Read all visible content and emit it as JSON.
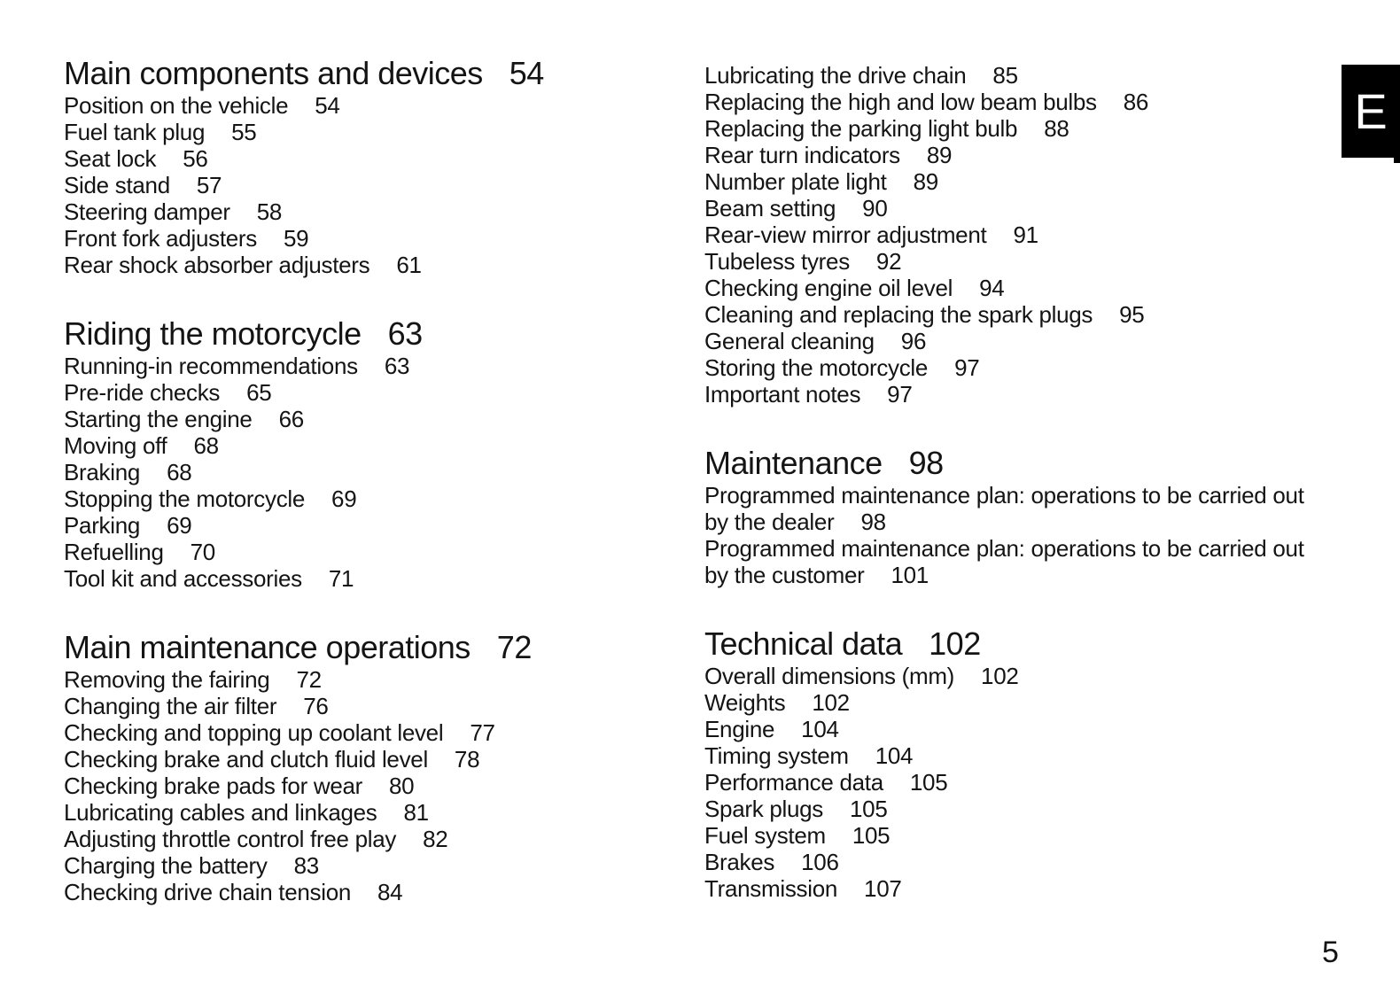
{
  "page": {
    "number": "5"
  },
  "section_tab": {
    "letter": "E"
  },
  "toc": {
    "left_column": [
      {
        "heading": {
          "label": "Main components and devices",
          "page": "54"
        },
        "items": [
          {
            "label": "Position on the vehicle",
            "page": "54"
          },
          {
            "label": "Fuel tank plug",
            "page": "55"
          },
          {
            "label": "Seat lock",
            "page": "56"
          },
          {
            "label": "Side stand",
            "page": "57"
          },
          {
            "label": "Steering damper",
            "page": "58"
          },
          {
            "label": "Front fork adjusters",
            "page": "59"
          },
          {
            "label": "Rear shock absorber adjusters",
            "page": "61"
          }
        ]
      },
      {
        "heading": {
          "label": "Riding the motorcycle",
          "page": "63"
        },
        "items": [
          {
            "label": "Running-in recommendations",
            "page": "63"
          },
          {
            "label": "Pre-ride checks",
            "page": "65"
          },
          {
            "label": "Starting the engine",
            "page": "66"
          },
          {
            "label": "Moving off",
            "page": "68"
          },
          {
            "label": "Braking",
            "page": "68"
          },
          {
            "label": "Stopping the motorcycle",
            "page": "69"
          },
          {
            "label": "Parking",
            "page": "69"
          },
          {
            "label": "Refuelling",
            "page": "70"
          },
          {
            "label": "Tool kit and accessories",
            "page": "71"
          }
        ]
      },
      {
        "heading": {
          "label": "Main maintenance operations",
          "page": "72"
        },
        "items": [
          {
            "label": "Removing the fairing",
            "page": "72"
          },
          {
            "label": "Changing the air filter",
            "page": "76"
          },
          {
            "label": "Checking and topping up coolant level",
            "page": "77"
          },
          {
            "label": "Checking brake and clutch fluid level",
            "page": "78"
          },
          {
            "label": "Checking brake pads for wear",
            "page": "80"
          },
          {
            "label": "Lubricating cables and linkages",
            "page": "81"
          },
          {
            "label": "Adjusting throttle control free play",
            "page": "82"
          },
          {
            "label": "Charging the battery",
            "page": "83"
          },
          {
            "label": "Checking drive chain tension",
            "page": "84"
          }
        ]
      }
    ],
    "right_column": [
      {
        "heading": null,
        "items": [
          {
            "label": "Lubricating the drive chain",
            "page": "85"
          },
          {
            "label": "Replacing the high and low beam bulbs",
            "page": "86"
          },
          {
            "label": "Replacing the parking light bulb",
            "page": "88"
          },
          {
            "label": "Rear turn indicators",
            "page": "89"
          },
          {
            "label": "Number plate light",
            "page": "89"
          },
          {
            "label": "Beam setting",
            "page": "90"
          },
          {
            "label": "Rear-view mirror adjustment",
            "page": "91"
          },
          {
            "label": "Tubeless tyres",
            "page": "92"
          },
          {
            "label": "Checking engine oil level",
            "page": "94"
          },
          {
            "label": "Cleaning and replacing the spark plugs",
            "page": "95"
          },
          {
            "label": "General cleaning",
            "page": "96"
          },
          {
            "label": "Storing the motorcycle",
            "page": "97"
          },
          {
            "label": "Important notes",
            "page": "97"
          }
        ]
      },
      {
        "heading": {
          "label": "Maintenance",
          "page": "98"
        },
        "items": [
          {
            "label": "Programmed maintenance plan: operations to be carried out",
            "page": ""
          },
          {
            "label": "by the dealer",
            "page": "98"
          },
          {
            "label": "Programmed maintenance plan: operations to be carried out",
            "page": ""
          },
          {
            "label": "by the customer",
            "page": "101"
          }
        ]
      },
      {
        "heading": {
          "label": "Technical data",
          "page": "102"
        },
        "items": [
          {
            "label": "Overall dimensions (mm)",
            "page": "102"
          },
          {
            "label": "Weights",
            "page": "102"
          },
          {
            "label": "Engine",
            "page": "104"
          },
          {
            "label": "Timing system",
            "page": "104"
          },
          {
            "label": "Performance data",
            "page": "105"
          },
          {
            "label": "Spark plugs",
            "page": "105"
          },
          {
            "label": "Fuel system",
            "page": "105"
          },
          {
            "label": "Brakes",
            "page": "106"
          },
          {
            "label": "Transmission",
            "page": "107"
          }
        ]
      }
    ]
  }
}
